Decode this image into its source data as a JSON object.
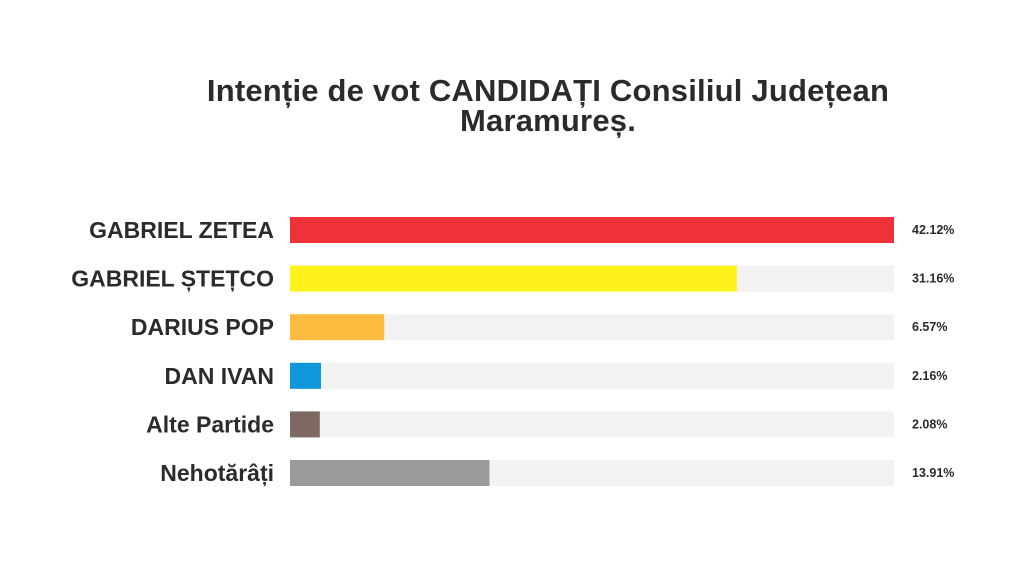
{
  "chart_data": {
    "type": "bar",
    "orientation": "horizontal",
    "title": [
      "Intenție de vot  CANDIDAȚI Consiliul Județean",
      "Maramureș."
    ],
    "categories": [
      "GABRIEL ZETEA",
      "GABRIEL ȘTEȚCO",
      "DARIUS POP",
      "DAN IVAN",
      "Alte Partide",
      "Nehotărâți"
    ],
    "values": [
      42.12,
      31.16,
      6.57,
      2.16,
      2.08,
      13.91
    ],
    "value_labels": [
      "42.12%",
      "31.16%",
      "6.57%",
      "2.16%",
      "2.08%",
      "13.91%"
    ],
    "colors": [
      "#ee3238",
      "#fff21a",
      "#fdbb3f",
      "#0f96db",
      "#7f6a63",
      "#9a9a9b"
    ],
    "track_color": "#f2f2f2",
    "xlim": [
      0,
      42.12
    ],
    "grid": false,
    "legend": "none"
  }
}
